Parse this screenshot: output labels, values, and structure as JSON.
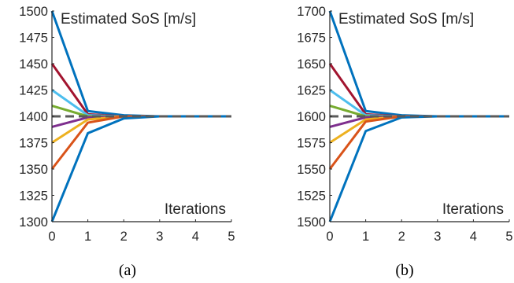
{
  "chart_data": [
    {
      "type": "line",
      "caption": "(a)",
      "title": "Estimated SoS [m/s]",
      "xlabel": "Iterations",
      "ylabel": "",
      "xlim": [
        0,
        5
      ],
      "ylim": [
        1300,
        1500
      ],
      "xticks": [
        0,
        1,
        2,
        3,
        4,
        5
      ],
      "yticks": [
        1300,
        1325,
        1350,
        1375,
        1400,
        1425,
        1450,
        1475,
        1500
      ],
      "x": [
        0,
        1,
        2,
        3,
        4,
        5
      ],
      "reference": {
        "value": 1400,
        "style": "dashed",
        "color": "#5a5a5a"
      },
      "grid": false,
      "series": [
        {
          "color": "#0072BD",
          "values": [
            1500,
            1405,
            1401,
            1400,
            1400,
            1400
          ]
        },
        {
          "color": "#A2142F",
          "values": [
            1450,
            1402,
            1400,
            1400,
            1400,
            1400
          ]
        },
        {
          "color": "#4DBEEE",
          "values": [
            1425,
            1401,
            1400,
            1400,
            1400,
            1400
          ]
        },
        {
          "color": "#77AC30",
          "values": [
            1410,
            1400,
            1400,
            1400,
            1400,
            1400
          ]
        },
        {
          "color": "#7E2F8E",
          "values": [
            1390,
            1399,
            1400,
            1400,
            1400,
            1400
          ]
        },
        {
          "color": "#EDB120",
          "values": [
            1375,
            1397,
            1400,
            1400,
            1400,
            1400
          ]
        },
        {
          "color": "#D95319",
          "values": [
            1350,
            1394,
            1400,
            1400,
            1400,
            1400
          ]
        },
        {
          "color": "#0072BD",
          "values": [
            1300,
            1384,
            1398,
            1400,
            1400,
            1400
          ]
        }
      ]
    },
    {
      "type": "line",
      "caption": "(b)",
      "title": "Estimated SoS [m/s]",
      "xlabel": "Iterations",
      "ylabel": "",
      "xlim": [
        0,
        5
      ],
      "ylim": [
        1500,
        1700
      ],
      "xticks": [
        0,
        1,
        2,
        3,
        4,
        5
      ],
      "yticks": [
        1500,
        1525,
        1550,
        1575,
        1600,
        1625,
        1650,
        1675,
        1700
      ],
      "x": [
        0,
        1,
        2,
        3,
        4,
        5
      ],
      "reference": {
        "value": 1600,
        "style": "dashed",
        "color": "#5a5a5a"
      },
      "grid": false,
      "series": [
        {
          "color": "#0072BD",
          "values": [
            1700,
            1605,
            1601,
            1600,
            1600,
            1600
          ]
        },
        {
          "color": "#A2142F",
          "values": [
            1650,
            1602,
            1600,
            1600,
            1600,
            1600
          ]
        },
        {
          "color": "#4DBEEE",
          "values": [
            1625,
            1601,
            1600,
            1600,
            1600,
            1600
          ]
        },
        {
          "color": "#77AC30",
          "values": [
            1610,
            1600,
            1600,
            1600,
            1600,
            1600
          ]
        },
        {
          "color": "#7E2F8E",
          "values": [
            1590,
            1599,
            1600,
            1600,
            1600,
            1600
          ]
        },
        {
          "color": "#EDB120",
          "values": [
            1575,
            1597,
            1600,
            1600,
            1600,
            1600
          ]
        },
        {
          "color": "#D95319",
          "values": [
            1550,
            1595,
            1600,
            1600,
            1600,
            1600
          ]
        },
        {
          "color": "#0072BD",
          "values": [
            1500,
            1586,
            1599,
            1600,
            1600,
            1600
          ]
        }
      ]
    }
  ]
}
